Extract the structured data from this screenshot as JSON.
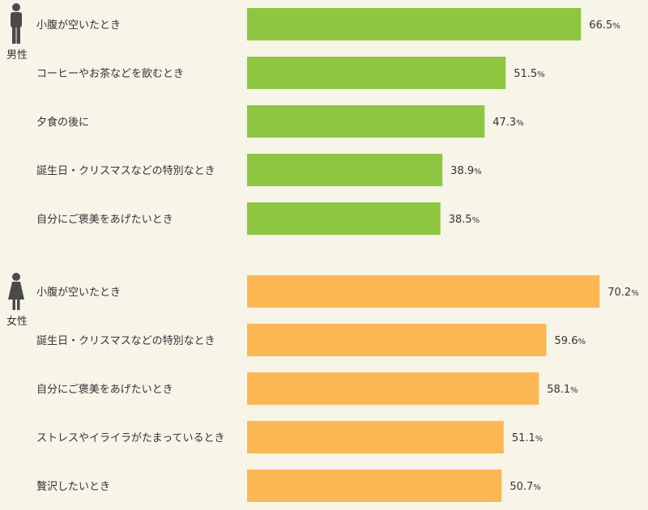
{
  "chart_data": [
    {
      "type": "bar",
      "orientation": "horizontal",
      "group_label": "男性",
      "group_icon": "male-person-icon",
      "color": "#8dc63f",
      "unit": "%",
      "categories": [
        "小腹が空いたとき",
        "コーヒーやお茶などを飲むとき",
        "夕食の後に",
        "誕生日・クリスマスなどの特別なとき",
        "自分にご褒美をあげたいとき"
      ],
      "values": [
        66.5,
        51.5,
        47.3,
        38.9,
        38.5
      ],
      "xlim": [
        0,
        100
      ]
    },
    {
      "type": "bar",
      "orientation": "horizontal",
      "group_label": "女性",
      "group_icon": "female-person-icon",
      "color": "#fdb752",
      "unit": "%",
      "categories": [
        "小腹が空いたとき",
        "誕生日・クリスマスなどの特別なとき",
        "自分にご褒美をあげたいとき",
        "ストレスやイライラがたまっているとき",
        "贅沢したいとき"
      ],
      "values": [
        70.2,
        59.6,
        58.1,
        51.1,
        50.7
      ],
      "xlim": [
        0,
        100
      ]
    }
  ]
}
